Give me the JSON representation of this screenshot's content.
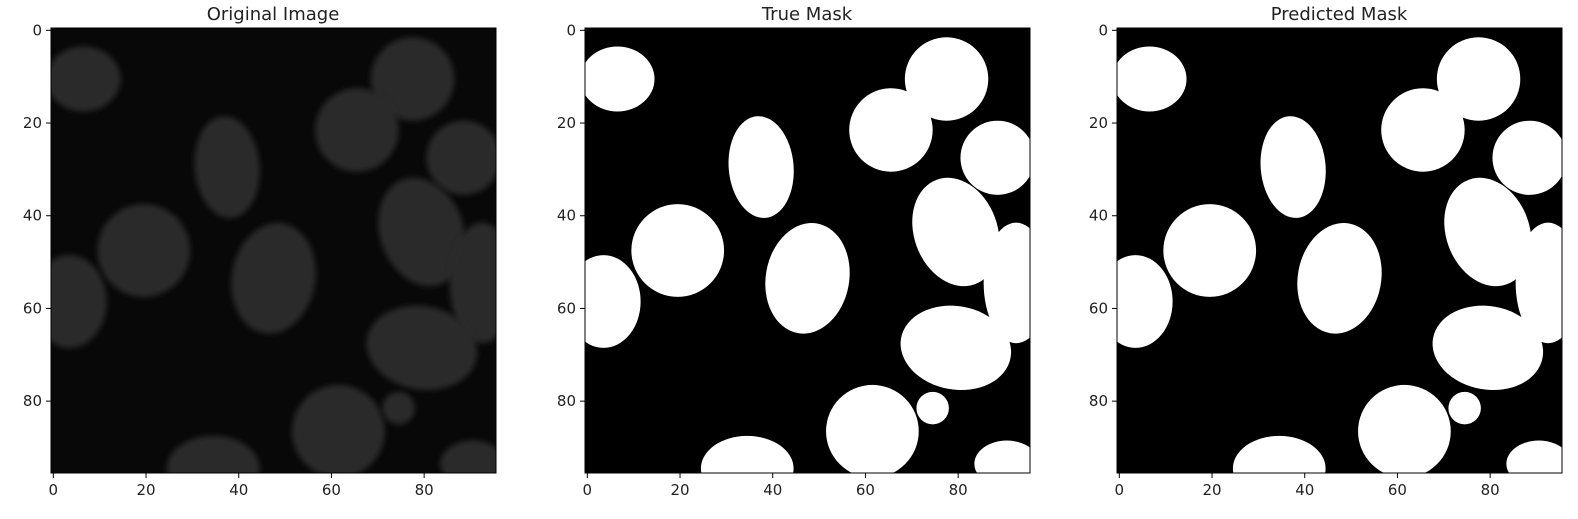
{
  "panels": [
    {
      "title": "Original Image",
      "kind": "grayscale",
      "x_ticks": [
        "0",
        "20",
        "40",
        "60",
        "80"
      ],
      "y_ticks": [
        "0",
        "20",
        "40",
        "60",
        "80"
      ],
      "extent": [
        0,
        96
      ]
    },
    {
      "title": "True Mask",
      "kind": "binary-mask",
      "x_ticks": [
        "0",
        "20",
        "40",
        "60",
        "80"
      ],
      "y_ticks": [
        "0",
        "20",
        "40",
        "60",
        "80"
      ],
      "extent": [
        0,
        96
      ]
    },
    {
      "title": "Predicted Mask",
      "kind": "binary-mask",
      "x_ticks": [
        "0",
        "20",
        "40",
        "60",
        "80"
      ],
      "y_ticks": [
        "0",
        "20",
        "40",
        "60",
        "80"
      ],
      "extent": [
        0,
        96
      ]
    }
  ],
  "nuclei": [
    {
      "cx": 7,
      "cy": 11,
      "rx": 8,
      "ry": 7,
      "rot": 0
    },
    {
      "cx": 38,
      "cy": 30,
      "rx": 7,
      "ry": 11,
      "rot": -5
    },
    {
      "cx": 78,
      "cy": 11,
      "rx": 9,
      "ry": 9,
      "rot": 0
    },
    {
      "cx": 66,
      "cy": 22,
      "rx": 9,
      "ry": 9,
      "rot": 0
    },
    {
      "cx": 89,
      "cy": 28,
      "rx": 8,
      "ry": 8,
      "rot": 0
    },
    {
      "cx": 20,
      "cy": 48,
      "rx": 10,
      "ry": 10,
      "rot": 0
    },
    {
      "cx": 4,
      "cy": 59,
      "rx": 8,
      "ry": 10,
      "rot": 0
    },
    {
      "cx": 48,
      "cy": 54,
      "rx": 9,
      "ry": 12,
      "rot": 10
    },
    {
      "cx": 80,
      "cy": 44,
      "rx": 9,
      "ry": 12,
      "rot": -20
    },
    {
      "cx": 93,
      "cy": 55,
      "rx": 7,
      "ry": 13,
      "rot": 0
    },
    {
      "cx": 80,
      "cy": 69,
      "rx": 12,
      "ry": 9,
      "rot": 10
    },
    {
      "cx": 62,
      "cy": 87,
      "rx": 10,
      "ry": 10,
      "rot": 0
    },
    {
      "cx": 75,
      "cy": 82,
      "rx": 3.5,
      "ry": 3.5,
      "rot": 0
    },
    {
      "cx": 35,
      "cy": 95,
      "rx": 10,
      "ry": 7,
      "rot": 0
    },
    {
      "cx": 91,
      "cy": 94,
      "rx": 7,
      "ry": 5,
      "rot": 0
    }
  ],
  "colors": {
    "mask_fg": "#ffffff",
    "mask_bg": "#000000",
    "image_bg": "#080808",
    "nucleus": "#2a2a2a"
  }
}
